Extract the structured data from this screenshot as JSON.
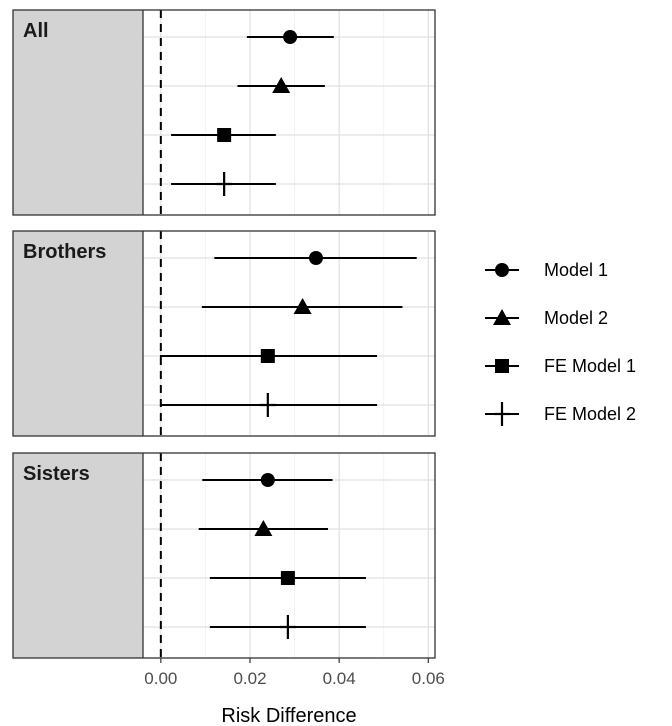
{
  "chart_data": {
    "type": "scatter",
    "subtype": "forest-plot",
    "xlabel": "Risk Difference",
    "xlim": [
      -0.004,
      0.0615
    ],
    "xticks": [
      0.0,
      0.02,
      0.04,
      0.06
    ],
    "xtick_labels": [
      "0.00",
      "0.02",
      "0.04",
      "0.06"
    ],
    "reference_line": 0,
    "grid": true,
    "legend_position": "right",
    "legend": [
      {
        "label": "Model 1",
        "marker": "circle"
      },
      {
        "label": "Model 2",
        "marker": "triangle"
      },
      {
        "label": "FE Model 1",
        "marker": "square"
      },
      {
        "label": "FE Model 2",
        "marker": "cross"
      }
    ],
    "panels": [
      {
        "label": "All",
        "estimates": [
          {
            "model": "Model 1",
            "est": 0.029,
            "lo": 0.0193,
            "hi": 0.0388
          },
          {
            "model": "Model 2",
            "est": 0.027,
            "lo": 0.0172,
            "hi": 0.0368
          },
          {
            "model": "FE Model 1",
            "est": 0.0142,
            "lo": 0.0023,
            "hi": 0.0258
          },
          {
            "model": "FE Model 2",
            "est": 0.0142,
            "lo": 0.0023,
            "hi": 0.0258
          }
        ]
      },
      {
        "label": "Brothers",
        "estimates": [
          {
            "model": "Model 1",
            "est": 0.0348,
            "lo": 0.012,
            "hi": 0.0574
          },
          {
            "model": "Model 2",
            "est": 0.0318,
            "lo": 0.0092,
            "hi": 0.0542
          },
          {
            "model": "FE Model 1",
            "est": 0.024,
            "lo": -0.0002,
            "hi": 0.0485
          },
          {
            "model": "FE Model 2",
            "est": 0.024,
            "lo": -0.0002,
            "hi": 0.0485
          }
        ]
      },
      {
        "label": "Sisters",
        "estimates": [
          {
            "model": "Model 1",
            "est": 0.024,
            "lo": 0.0093,
            "hi": 0.0385
          },
          {
            "model": "Model 2",
            "est": 0.023,
            "lo": 0.0085,
            "hi": 0.0375
          },
          {
            "model": "FE Model 1",
            "est": 0.0285,
            "lo": 0.011,
            "hi": 0.046
          },
          {
            "model": "FE Model 2",
            "est": 0.0285,
            "lo": 0.011,
            "hi": 0.046
          }
        ]
      }
    ]
  }
}
